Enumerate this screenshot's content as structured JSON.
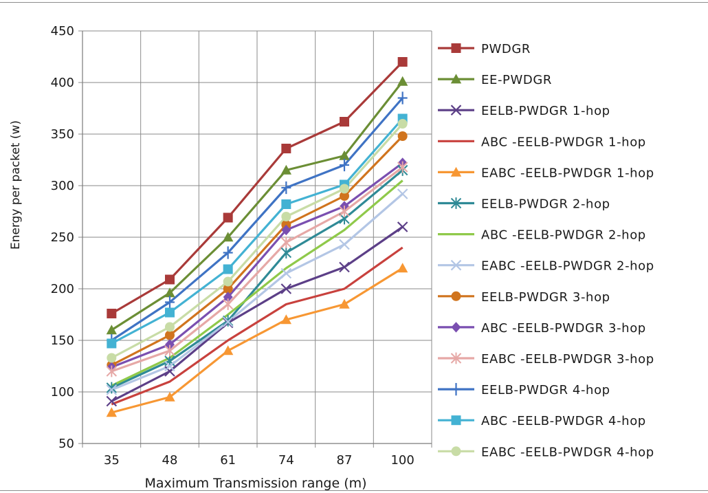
{
  "chart_data": {
    "type": "line",
    "title": "",
    "xlabel": "Maximum Transmission range (m)",
    "ylabel": "Energy per packet (w)",
    "categories": [
      "35",
      "48",
      "61",
      "74",
      "87",
      "100"
    ],
    "ylim": [
      50,
      450
    ],
    "yticks": [
      50,
      100,
      150,
      200,
      250,
      300,
      350,
      400,
      450
    ],
    "grid": true,
    "legend_position": "right",
    "series": [
      {
        "name": "PWDGR",
        "color": "#a93a39",
        "marker": "square",
        "values": [
          176,
          209,
          269,
          336,
          362,
          420
        ]
      },
      {
        "name": "EE-PWDGR",
        "color": "#6b8e35",
        "marker": "triangle",
        "values": [
          160,
          196,
          250,
          315,
          329,
          401
        ]
      },
      {
        "name": "EELB-PWDGR 1-hop",
        "color": "#5c3f87",
        "marker": "x",
        "values": [
          91,
          120,
          167,
          200,
          221,
          260
        ]
      },
      {
        "name": "ABC -EELB-PWDGR 1-hop",
        "color": "#c8413d",
        "marker": "none",
        "values": [
          88,
          110,
          150,
          185,
          200,
          240
        ]
      },
      {
        "name": "EABC -EELB-PWDGR 1-hop",
        "color": "#f79733",
        "marker": "triangle",
        "values": [
          80,
          95,
          140,
          170,
          185,
          220
        ]
      },
      {
        "name": "EELB-PWDGR 2-hop",
        "color": "#2f8a96",
        "marker": "star",
        "values": [
          104,
          130,
          169,
          235,
          268,
          315
        ]
      },
      {
        "name": "ABC -EELB-PWDGR 2-hop",
        "color": "#8fc94a",
        "marker": "none",
        "values": [
          106,
          133,
          175,
          220,
          257,
          305
        ]
      },
      {
        "name": "EABC -EELB-PWDGR 2-hop",
        "color": "#b3c6e5",
        "marker": "x",
        "values": [
          102,
          125,
          168,
          215,
          243,
          292
        ]
      },
      {
        "name": "EELB-PWDGR 3-hop",
        "color": "#d0741e",
        "marker": "circle",
        "values": [
          126,
          155,
          200,
          262,
          290,
          348
        ]
      },
      {
        "name": "ABC -EELB-PWDGR 3-hop",
        "color": "#7a4fb0",
        "marker": "diamond",
        "values": [
          124,
          146,
          192,
          257,
          280,
          322
        ]
      },
      {
        "name": "EABC -EELB-PWDGR 3-hop",
        "color": "#e6a8a6",
        "marker": "star",
        "values": [
          120,
          140,
          185,
          245,
          275,
          318
        ]
      },
      {
        "name": "EELB-PWDGR 4-hop",
        "color": "#3f73c4",
        "marker": "plus",
        "values": [
          150,
          187,
          235,
          298,
          320,
          385
        ]
      },
      {
        "name": "ABC -EELB-PWDGR 4-hop",
        "color": "#43b2d3",
        "marker": "square",
        "values": [
          147,
          177,
          219,
          282,
          301,
          365
        ]
      },
      {
        "name": "EABC -EELB-PWDGR 4-hop",
        "color": "#c8dca6",
        "marker": "circle",
        "values": [
          133,
          163,
          207,
          270,
          297,
          360
        ]
      }
    ]
  }
}
